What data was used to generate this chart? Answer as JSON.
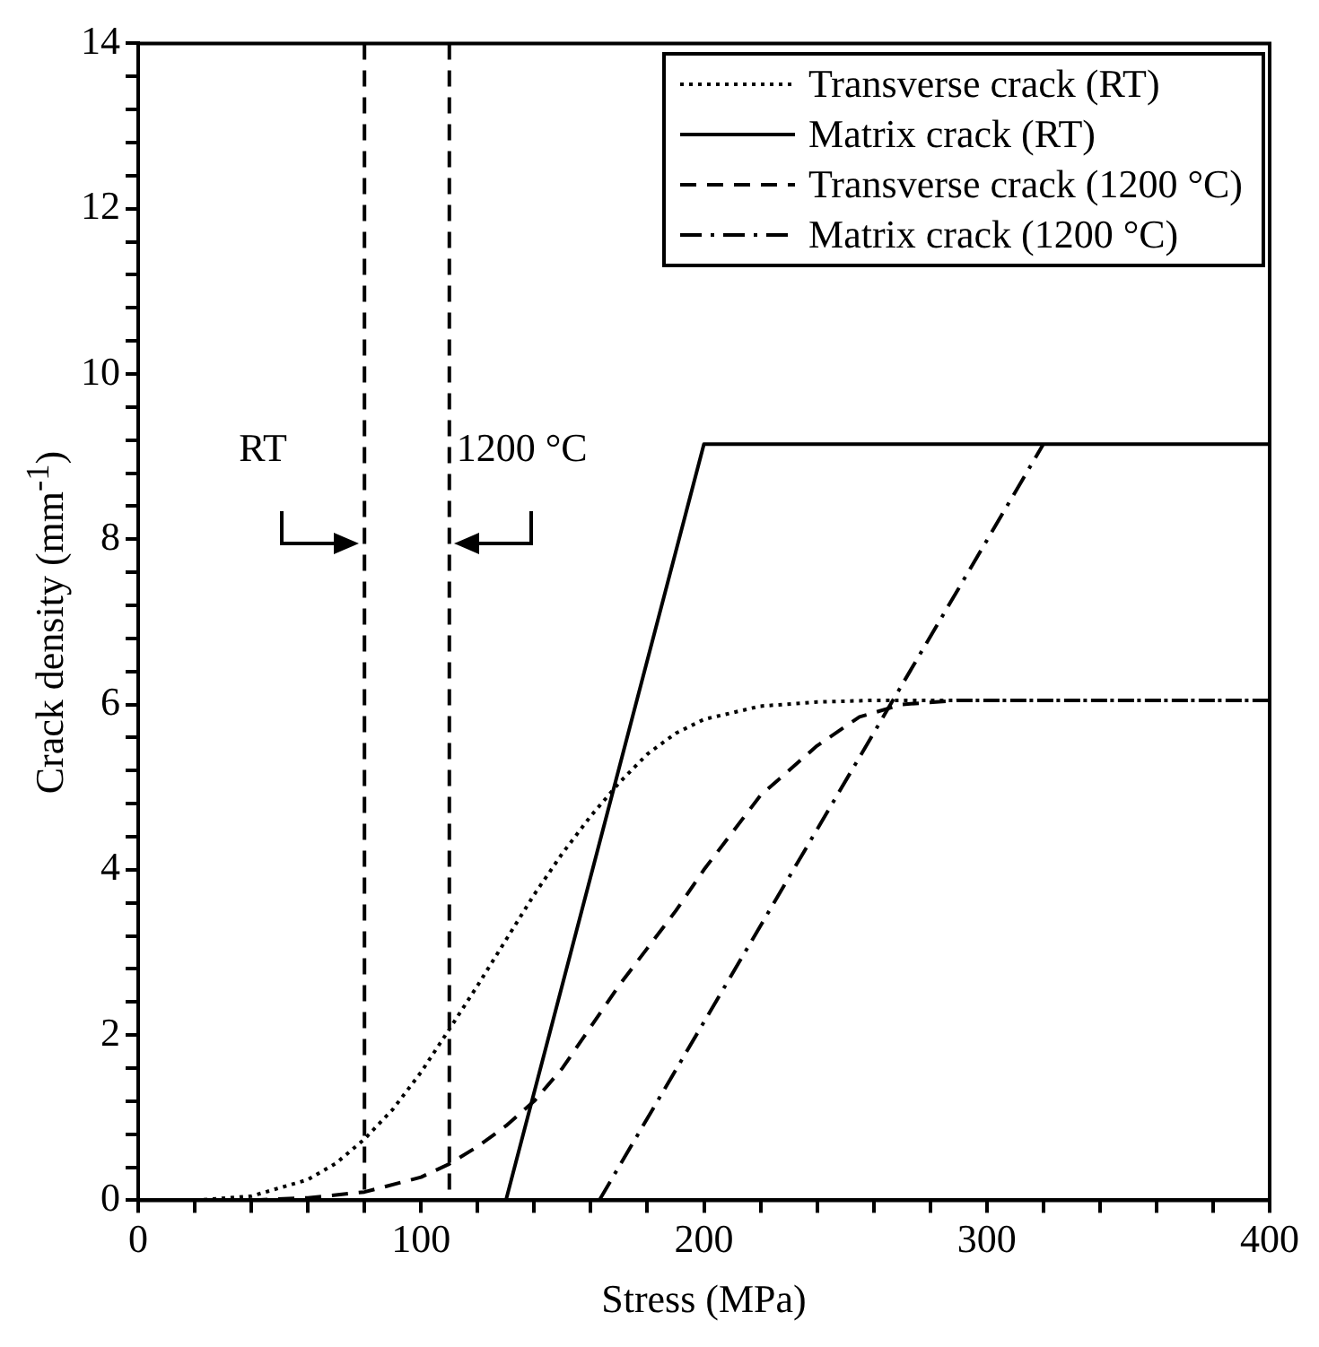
{
  "chart_data": {
    "type": "line",
    "xlabel": "Stress (MPa)",
    "ylabel": "Crack density (mm$^{-1}$)",
    "xlim": [
      0,
      400
    ],
    "xticks": [
      0,
      {
        "value": 20,
        "label": null
      },
      {
        "value": 40,
        "label": null
      },
      {
        "value": 60,
        "label": null
      },
      {
        "value": 80,
        "label": null
      },
      100,
      {
        "value": 120,
        "label": null
      },
      {
        "value": 140,
        "label": null
      },
      {
        "value": 160,
        "label": null
      },
      {
        "value": 180,
        "label": null
      },
      200,
      {
        "value": 220,
        "label": null
      },
      {
        "value": 240,
        "label": null
      },
      {
        "value": 260,
        "label": null
      },
      {
        "value": 280,
        "label": null
      },
      300,
      {
        "value": 320,
        "label": null
      },
      {
        "value": 340,
        "label": null
      },
      {
        "value": 360,
        "label": null
      },
      {
        "value": 380,
        "label": null
      },
      400
    ],
    "ylim": [
      0,
      14
    ],
    "yticks": [
      0,
      {
        "value": 0.4,
        "label": null
      },
      {
        "value": 0.8,
        "label": null
      },
      {
        "value": 1.2,
        "label": null
      },
      {
        "value": 1.6,
        "label": null
      },
      2,
      {
        "value": 2.4,
        "label": null
      },
      {
        "value": 2.8,
        "label": null
      },
      {
        "value": 3.2,
        "label": null
      },
      {
        "value": 3.6,
        "label": null
      },
      4,
      {
        "value": 4.4,
        "label": null
      },
      {
        "value": 4.8,
        "label": null
      },
      {
        "value": 5.2,
        "label": null
      },
      {
        "value": 5.6,
        "label": null
      },
      6,
      {
        "value": 6.4,
        "label": null
      },
      {
        "value": 6.8,
        "label": null
      },
      {
        "value": 7.2,
        "label": null
      },
      {
        "value": 7.6,
        "label": null
      },
      8,
      {
        "value": 8.4,
        "label": null
      },
      {
        "value": 8.8,
        "label": null
      },
      {
        "value": 9.2,
        "label": null
      },
      {
        "value": 9.6,
        "label": null
      },
      10,
      {
        "value": 10.4,
        "label": null
      },
      {
        "value": 10.8,
        "label": null
      },
      {
        "value": 11.2,
        "label": null
      },
      {
        "value": 11.6,
        "label": null
      },
      12,
      {
        "value": 12.4,
        "label": null
      },
      {
        "value": 12.8,
        "label": null
      },
      {
        "value": 13.2,
        "label": null
      },
      {
        "value": 13.6,
        "label": null
      },
      14
    ],
    "grid": false,
    "legend": "top right",
    "marker": "none",
    "series": [
      {
        "name": "Transverse crack (RT)",
        "color": "#000000",
        "line_style": "dotted",
        "x": [
          20,
          40,
          60,
          70,
          80,
          90,
          100,
          110,
          120,
          130,
          140,
          150,
          160,
          170,
          180,
          190,
          200,
          220,
          240,
          260,
          400
        ],
        "values": [
          0,
          0.05,
          0.25,
          0.45,
          0.74,
          1.1,
          1.55,
          2.07,
          2.6,
          3.15,
          3.7,
          4.2,
          4.65,
          5.05,
          5.4,
          5.65,
          5.82,
          5.98,
          6.03,
          6.05,
          6.05
        ]
      },
      {
        "name": "Matrix crack (RT)",
        "color": "#000000",
        "line_style": "solid",
        "x": [
          130,
          200,
          400
        ],
        "values": [
          0,
          9.15,
          9.15
        ]
      },
      {
        "name": "Transverse crack (1200 °C)",
        "color": "#000000",
        "line_style": "dashed",
        "x": [
          40,
          60,
          80,
          100,
          110,
          120,
          130,
          140,
          150,
          160,
          170,
          180,
          190,
          200,
          220,
          240,
          255,
          270,
          290,
          400
        ],
        "values": [
          0,
          0.03,
          0.1,
          0.28,
          0.44,
          0.65,
          0.9,
          1.2,
          1.6,
          2.1,
          2.6,
          3.05,
          3.5,
          4.0,
          4.9,
          5.5,
          5.85,
          6.0,
          6.05,
          6.05
        ]
      },
      {
        "name": "Matrix crack (1200 °C)",
        "color": "#000000",
        "line_style": "dashdot",
        "x": [
          163,
          320
        ],
        "values": [
          0,
          9.15
        ]
      }
    ],
    "ref_lines": [
      {
        "axis": "x",
        "value": 80,
        "label": "RT",
        "line_style": "dashed",
        "color": "#000000"
      },
      {
        "axis": "x",
        "value": 110,
        "label": "1200 °C",
        "line_style": "dashed",
        "color": "#000000"
      }
    ]
  }
}
